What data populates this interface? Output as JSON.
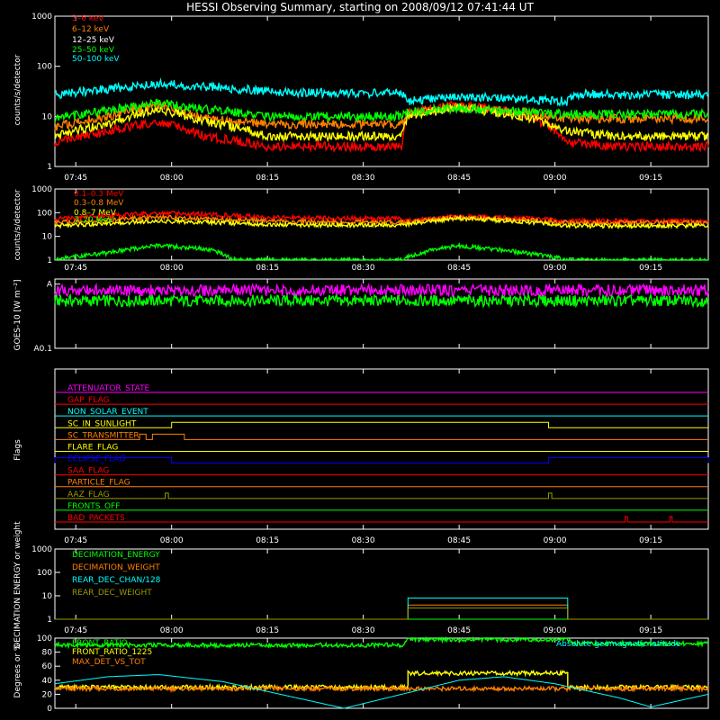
{
  "title": "HESSI Observing Summary, starting on 2008/09/12 07:41:44 UT",
  "colors": {
    "bg": "#000000",
    "axis": "#ffffff",
    "red": "#ff0000",
    "orange": "#ff8000",
    "yellow": "#ffff00",
    "green": "#00ff00",
    "cyan": "#00ffff",
    "magenta": "#ff00ff",
    "blue": "#0000ff",
    "olive": "#9a9a00"
  },
  "time_axis": {
    "start": "07:41:44",
    "end": "09:24",
    "ticks": [
      "07:45",
      "08:00",
      "08:15",
      "08:30",
      "08:45",
      "09:00",
      "09:15"
    ]
  },
  "chart_data": [
    {
      "id": "panel1",
      "type": "line",
      "ylabel": "counts/s/detector",
      "yscale": "log",
      "ylim": [
        1,
        1000
      ],
      "yticklabels": [
        "1",
        "10",
        "100",
        "1000"
      ],
      "series": [
        {
          "name": "3–6 keV",
          "color": "#ff0000",
          "points": [
            [
              "07:41:44",
              3
            ],
            [
              "07:50",
              5
            ],
            [
              "07:58",
              8
            ],
            [
              "08:05",
              4
            ],
            [
              "08:15",
              2.5
            ],
            [
              "08:25",
              2.5
            ],
            [
              "08:36",
              2.5
            ],
            [
              "08:37",
              12
            ],
            [
              "08:45",
              17
            ],
            [
              "08:55",
              11
            ],
            [
              "09:02",
              3
            ],
            [
              "09:10",
              2.5
            ],
            [
              "09:24",
              2.5
            ]
          ]
        },
        {
          "name": "6–12 keV",
          "color": "#ff8000",
          "points": [
            [
              "07:41:44",
              6
            ],
            [
              "07:50",
              10
            ],
            [
              "07:58",
              17
            ],
            [
              "08:05",
              9
            ],
            [
              "08:15",
              7
            ],
            [
              "08:25",
              7
            ],
            [
              "08:36",
              7
            ],
            [
              "08:37",
              11
            ],
            [
              "08:45",
              16
            ],
            [
              "08:55",
              12
            ],
            [
              "09:02",
              9
            ],
            [
              "09:10",
              9
            ],
            [
              "09:24",
              9
            ]
          ]
        },
        {
          "name": "12–25 keV",
          "color": "#ffff00",
          "points": [
            [
              "07:41:44",
              4
            ],
            [
              "07:50",
              7
            ],
            [
              "07:58",
              14
            ],
            [
              "08:05",
              8
            ],
            [
              "08:15",
              4
            ],
            [
              "08:25",
              4
            ],
            [
              "08:36",
              4
            ],
            [
              "08:37",
              10
            ],
            [
              "08:45",
              15
            ],
            [
              "08:55",
              10
            ],
            [
              "09:02",
              5
            ],
            [
              "09:10",
              4
            ],
            [
              "09:24",
              4
            ]
          ]
        },
        {
          "name": "25–50 keV",
          "color": "#00ff00",
          "points": [
            [
              "07:41:44",
              9
            ],
            [
              "07:50",
              13
            ],
            [
              "07:58",
              18
            ],
            [
              "08:05",
              14
            ],
            [
              "08:15",
              10
            ],
            [
              "08:25",
              10
            ],
            [
              "08:36",
              10
            ],
            [
              "08:37",
              12
            ],
            [
              "08:45",
              15
            ],
            [
              "08:55",
              12
            ],
            [
              "09:02",
              11
            ],
            [
              "09:10",
              11
            ],
            [
              "09:24",
              11
            ]
          ]
        },
        {
          "name": "50–100 keV",
          "color": "#00ffff",
          "points": [
            [
              "07:41:44",
              27
            ],
            [
              "07:50",
              35
            ],
            [
              "07:58",
              45
            ],
            [
              "08:05",
              40
            ],
            [
              "08:15",
              32
            ],
            [
              "08:25",
              29
            ],
            [
              "08:36",
              29
            ],
            [
              "08:37",
              20
            ],
            [
              "08:45",
              25
            ],
            [
              "08:55",
              22
            ],
            [
              "09:02",
              20
            ],
            [
              "09:03",
              28
            ],
            [
              "09:10",
              27
            ],
            [
              "09:24",
              27
            ]
          ]
        }
      ]
    },
    {
      "id": "panel2",
      "type": "line",
      "ylabel": "counts/s/detector",
      "yscale": "log",
      "ylim": [
        1,
        1000
      ],
      "yticklabels": [
        "1",
        "10",
        "100",
        "1000"
      ],
      "series": [
        {
          "name": "0.1–0.3 MeV",
          "color": "#ff0000",
          "points": [
            [
              "07:41:44",
              55
            ],
            [
              "07:50",
              75
            ],
            [
              "07:58",
              100
            ],
            [
              "08:05",
              85
            ],
            [
              "08:15",
              65
            ],
            [
              "08:25",
              58
            ],
            [
              "08:36",
              58
            ],
            [
              "08:37",
              45
            ],
            [
              "08:45",
              70
            ],
            [
              "08:55",
              58
            ],
            [
              "09:02",
              45
            ],
            [
              "09:24",
              45
            ]
          ]
        },
        {
          "name": "0.3–0.8 MeV",
          "color": "#ff8000",
          "points": [
            [
              "07:41:44",
              38
            ],
            [
              "07:50",
              50
            ],
            [
              "07:58",
              65
            ],
            [
              "08:05",
              55
            ],
            [
              "08:15",
              45
            ],
            [
              "08:25",
              40
            ],
            [
              "08:36",
              40
            ],
            [
              "08:37",
              40
            ],
            [
              "08:45",
              65
            ],
            [
              "08:55",
              50
            ],
            [
              "09:02",
              38
            ],
            [
              "09:24",
              38
            ]
          ]
        },
        {
          "name": "0.8–7 MeV",
          "color": "#ffff00",
          "points": [
            [
              "07:41:44",
              28
            ],
            [
              "07:50",
              35
            ],
            [
              "07:58",
              45
            ],
            [
              "08:05",
              40
            ],
            [
              "08:15",
              32
            ],
            [
              "08:25",
              30
            ],
            [
              "08:36",
              30
            ],
            [
              "08:37",
              32
            ],
            [
              "08:45",
              58
            ],
            [
              "08:55",
              42
            ],
            [
              "09:02",
              28
            ],
            [
              "09:24",
              28
            ]
          ]
        },
        {
          "name": "7–20 MeV",
          "color": "#00ff00",
          "points": [
            [
              "07:41:44",
              1
            ],
            [
              "07:50",
              2
            ],
            [
              "07:58",
              4
            ],
            [
              "08:05",
              3
            ],
            [
              "08:10",
              1
            ],
            [
              "08:36",
              1
            ],
            [
              "08:45",
              4
            ],
            [
              "08:55",
              2
            ],
            [
              "09:02",
              1
            ],
            [
              "09:24",
              1
            ]
          ]
        }
      ]
    },
    {
      "id": "panel3",
      "type": "line",
      "ylabel": "GOES-10 [W m⁻²]",
      "yscale": "log",
      "yticklabels": [
        "A0.1",
        "A"
      ],
      "series": [
        {
          "name": "",
          "color": "#ff00ff",
          "points": [
            [
              "07:41:44",
              0.8
            ],
            [
              "08:00",
              0.8
            ],
            [
              "08:30",
              0.8
            ],
            [
              "09:00",
              0.8
            ],
            [
              "09:24",
              0.8
            ]
          ]
        },
        {
          "name": "",
          "color": "#00ff00",
          "points": [
            [
              "07:41:44",
              0.55
            ],
            [
              "09:24",
              0.55
            ]
          ]
        }
      ]
    },
    {
      "id": "panel4",
      "type": "flags",
      "ylabel": "Flags",
      "flags": [
        {
          "name": "ATTENUATOR_STATE",
          "color": "#ff00ff",
          "intervals": []
        },
        {
          "name": "GAP_FLAG",
          "color": "#ff0000",
          "intervals": []
        },
        {
          "name": "NON_SOLAR_EVENT",
          "color": "#00ffff",
          "intervals": []
        },
        {
          "name": "SC_IN_SUNLIGHT",
          "color": "#ffff00",
          "intervals": [
            [
              "08:00",
              "08:59"
            ]
          ]
        },
        {
          "name": "SC_TRANSMITTER",
          "color": "#ff8000",
          "intervals": [
            [
              "07:55",
              "07:56"
            ],
            [
              "07:57",
              "08:02"
            ]
          ]
        },
        {
          "name": "FLARE_FLAG",
          "color": "#ffff00",
          "intervals": []
        },
        {
          "name": "ECLIPSE_FLAG",
          "color": "#0000ff",
          "intervals": [
            [
              "07:41:44",
              "08:00"
            ],
            [
              "08:59",
              "09:24"
            ]
          ]
        },
        {
          "name": "SAA_FLAG",
          "color": "#ff0000",
          "intervals": []
        },
        {
          "name": "PARTICLE_FLAG",
          "color": "#ff8000",
          "intervals": []
        },
        {
          "name": "AAZ_FLAG",
          "color": "#9a9a00",
          "intervals": [
            [
              "07:59",
              "07:59:30"
            ],
            [
              "08:59",
              "08:59:30"
            ]
          ]
        },
        {
          "name": "FRONTS_OFF",
          "color": "#00ff00",
          "intervals": []
        },
        {
          "name": "BAD_PACKETS",
          "color": "#ff0000",
          "intervals": [
            [
              "09:11",
              "09:11:20"
            ],
            [
              "09:18",
              "09:18:20"
            ]
          ]
        }
      ]
    },
    {
      "id": "panel5",
      "type": "line",
      "ylabel": "DECIMATION ENERGY or weight",
      "yscale": "log",
      "ylim": [
        1,
        1000
      ],
      "yticklabels": [
        "1",
        "10",
        "100",
        "1000"
      ],
      "series": [
        {
          "name": "DECIMATION_ENERGY",
          "color": "#00ff00",
          "points": [
            [
              "07:41:44",
              1
            ],
            [
              "09:24",
              1
            ]
          ]
        },
        {
          "name": "DECIMATION_WEIGHT",
          "color": "#ff8000",
          "points": [
            [
              "07:41:44",
              1
            ],
            [
              "08:37",
              1
            ],
            [
              "08:37",
              4
            ],
            [
              "09:02",
              4
            ],
            [
              "09:02",
              1
            ],
            [
              "09:24",
              1
            ]
          ]
        },
        {
          "name": "REAR_DEC_CHAN/128",
          "color": "#00ffff",
          "points": [
            [
              "07:41:44",
              1
            ],
            [
              "08:37",
              1
            ],
            [
              "08:37",
              8
            ],
            [
              "09:02",
              8
            ],
            [
              "09:02",
              1
            ],
            [
              "09:24",
              1
            ]
          ]
        },
        {
          "name": "REAR_DEC_WEIGHT",
          "color": "#9a9a00",
          "points": [
            [
              "07:41:44",
              1
            ],
            [
              "08:37",
              1
            ],
            [
              "08:37",
              3
            ],
            [
              "09:02",
              3
            ],
            [
              "09:02",
              1
            ],
            [
              "09:24",
              1
            ]
          ]
        }
      ]
    },
    {
      "id": "panel6",
      "type": "line",
      "ylabel": "Degrees or %",
      "ylim": [
        0,
        100
      ],
      "yticklabels": [
        "0",
        "20",
        "40",
        "60",
        "80",
        "100"
      ],
      "series": [
        {
          "name": "FRONT_RATIO",
          "color": "#00ff00",
          "points": [
            [
              "07:41:44",
              90
            ],
            [
              "08:36",
              90
            ],
            [
              "08:37",
              98
            ],
            [
              "09:02",
              98
            ],
            [
              "09:03",
              92
            ],
            [
              "09:24",
              92
            ]
          ]
        },
        {
          "name": "FRONT_RATIO_1225",
          "color": "#ffff00",
          "points": [
            [
              "07:41:44",
              30
            ],
            [
              "08:37",
              30
            ],
            [
              "08:37",
              50
            ],
            [
              "09:02",
              50
            ],
            [
              "09:02",
              30
            ],
            [
              "09:24",
              30
            ]
          ]
        },
        {
          "name": "MAX_DET_VS_TOT",
          "color": "#ff8000",
          "points": [
            [
              "07:41:44",
              28
            ],
            [
              "09:24",
              28
            ]
          ]
        },
        {
          "name": "Absolute geomagnetic latitude",
          "color": "#00ffff",
          "points": [
            [
              "07:41:44",
              35
            ],
            [
              "07:50",
              45
            ],
            [
              "07:58",
              48
            ],
            [
              "08:08",
              38
            ],
            [
              "08:18",
              18
            ],
            [
              "08:27",
              0
            ],
            [
              "08:36",
              20
            ],
            [
              "08:45",
              40
            ],
            [
              "08:52",
              45
            ],
            [
              "09:00",
              35
            ],
            [
              "09:10",
              15
            ],
            [
              "09:15",
              2
            ],
            [
              "09:24",
              20
            ]
          ]
        }
      ]
    }
  ]
}
